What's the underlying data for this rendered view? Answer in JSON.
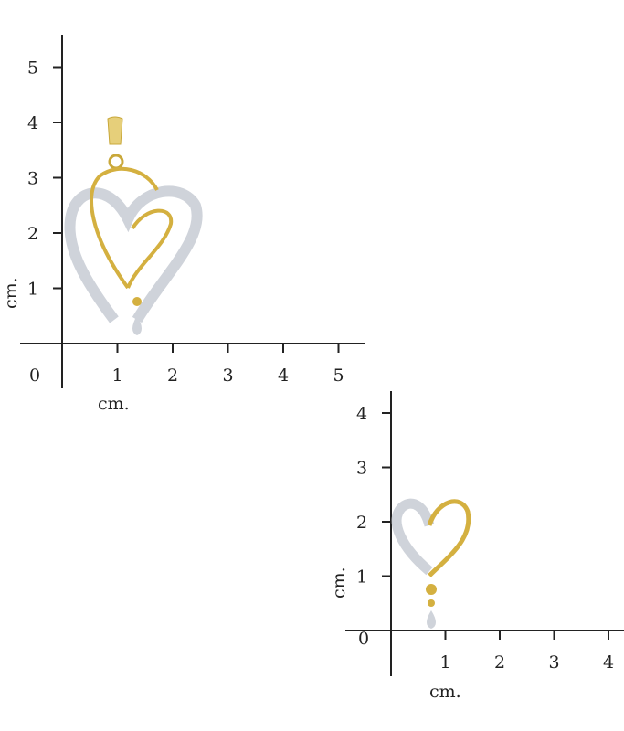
{
  "charts": [
    {
      "item": "pendant",
      "x_unit": "cm.",
      "y_unit": "cm.",
      "origin_label": "0",
      "x_ticks": [
        "1",
        "2",
        "3",
        "4",
        "5"
      ],
      "y_ticks": [
        "1",
        "2",
        "3",
        "4",
        "5"
      ]
    },
    {
      "item": "earring",
      "x_unit": "cm.",
      "y_unit": "cm.",
      "origin_label": "0",
      "x_ticks": [
        "1",
        "2",
        "3",
        "4"
      ],
      "y_ticks": [
        "1",
        "2",
        "3",
        "4"
      ]
    }
  ],
  "colors": {
    "gold": "#d4b040",
    "silver": "#c8ccd4",
    "axis": "#222222"
  }
}
